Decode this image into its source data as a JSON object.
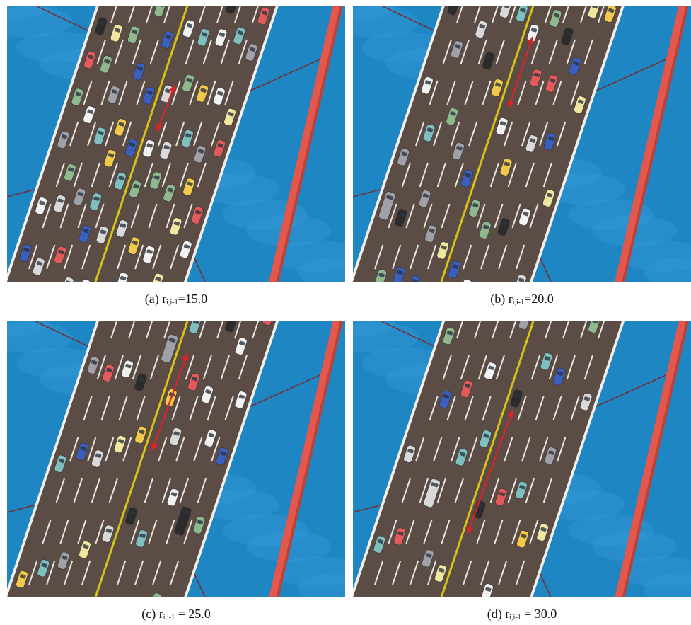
{
  "panels": [
    {
      "id": "a",
      "label": "(a) r",
      "subscript": "i,i-1",
      "value": "=15.0"
    },
    {
      "id": "b",
      "label": "(b) r",
      "subscript": "i,i-1",
      "value": "=20.0"
    },
    {
      "id": "c",
      "label": "(c) r",
      "subscript": "i,i-1",
      "value": " = 25.0"
    },
    {
      "id": "d",
      "label": "(d) r",
      "subscript": "i,i-1",
      "value": " = 30.0"
    }
  ],
  "colors": {
    "water": "#1f86c4",
    "water_light": "#3fa5de",
    "road": "#5b4d45",
    "road_edge": "#f2efe8",
    "lane_dash": "#e9e6df",
    "center_line": "#d8c21a",
    "cable": "#e3574d",
    "arrow": "#e0202a"
  },
  "vehicle_palette": [
    "#d9d9d9",
    "#f0e6a0",
    "#e35a5a",
    "#8fb88f",
    "#3b5fbf",
    "#f2f2f2",
    "#a0a0a8",
    "#f2c94c",
    "#7fbfbf",
    "#2b2b2b"
  ]
}
